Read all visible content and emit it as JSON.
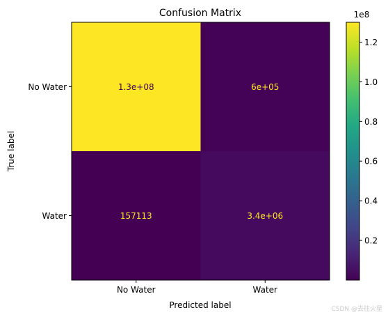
{
  "chart_data": {
    "type": "heatmap",
    "title": "Confusion Matrix",
    "xlabel": "Predicted label",
    "ylabel": "True label",
    "x_categories": [
      "No Water",
      "Water"
    ],
    "y_categories": [
      "No Water",
      "Water"
    ],
    "values": [
      [
        130000000,
        600000
      ],
      [
        157113,
        3400000
      ]
    ],
    "cell_labels": [
      [
        "1.3e+08",
        "6e+05"
      ],
      [
        "157113",
        "3.4e+06"
      ]
    ],
    "colormap": "viridis",
    "label_color_on_dark": "#fde725",
    "label_color_on_light": "#440154",
    "colorbar": {
      "range": [
        0,
        130000000
      ],
      "multiplier_label": "1e8",
      "ticks": [
        0.2,
        0.4,
        0.6,
        0.8,
        1.0,
        1.2
      ],
      "tick_labels": [
        "0.2",
        "0.4",
        "0.6",
        "0.8",
        "1.0",
        "1.2"
      ]
    }
  },
  "watermark": "CSDN @去往火星"
}
